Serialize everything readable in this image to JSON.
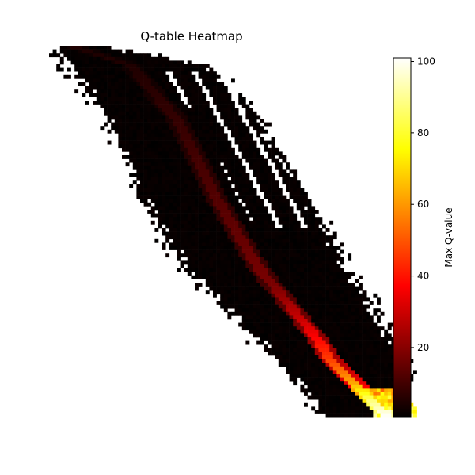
{
  "chart_data": {
    "type": "heatmap",
    "title": "Q-table Heatmap",
    "axes_visible": false,
    "colormap": "hot",
    "value_range": [
      0.5,
      101
    ],
    "colorbar": {
      "label": "Max Q-value",
      "ticks": [
        20,
        40,
        60,
        80,
        100
      ],
      "placement": "right"
    },
    "band": {
      "description_points": [
        {
          "row": 0,
          "col_start": 0,
          "col_end": 16
        },
        {
          "row": 5,
          "col_start": 4,
          "col_end": 44
        },
        {
          "row": 20,
          "col_start": 16,
          "col_end": 58
        },
        {
          "row": 40,
          "col_start": 24,
          "col_end": 70
        },
        {
          "row": 60,
          "col_start": 36,
          "col_end": 82
        },
        {
          "row": 80,
          "col_start": 56,
          "col_end": 94
        },
        {
          "row": 100,
          "col_start": 74,
          "col_end": 101
        }
      ],
      "ridge_values": [
        {
          "row": 5,
          "value": 5
        },
        {
          "row": 40,
          "value": 12
        },
        {
          "row": 65,
          "value": 18
        },
        {
          "row": 75,
          "value": 30
        },
        {
          "row": 85,
          "value": 45
        },
        {
          "row": 92,
          "value": 62
        },
        {
          "row": 97,
          "value": 88
        },
        {
          "row": 101,
          "value": 100
        }
      ]
    }
  }
}
